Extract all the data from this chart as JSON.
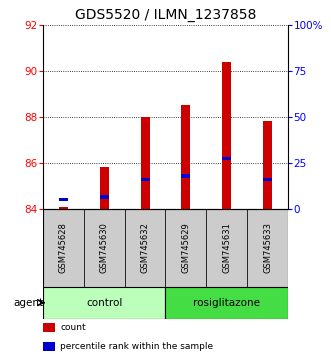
{
  "title": "GDS5520 / ILMN_1237858",
  "samples": [
    "GSM745628",
    "GSM745630",
    "GSM745632",
    "GSM745629",
    "GSM745631",
    "GSM745633"
  ],
  "red_values": [
    84.1,
    85.8,
    88.0,
    88.5,
    90.4,
    87.8
  ],
  "blue_values": [
    84.4,
    84.52,
    85.28,
    85.42,
    86.18,
    85.28
  ],
  "ymin": 84,
  "ymax": 92,
  "yticks_left": [
    84,
    86,
    88,
    90,
    92
  ],
  "yticks_right_vals": [
    84,
    86,
    88,
    90,
    92
  ],
  "yticks_right_labels": [
    "0",
    "25",
    "50",
    "75",
    "100%"
  ],
  "groups": [
    {
      "label": "control",
      "indices": [
        0,
        1,
        2
      ],
      "color": "#bbffbb"
    },
    {
      "label": "rosiglitazone",
      "indices": [
        3,
        4,
        5
      ],
      "color": "#44dd44"
    }
  ],
  "bar_color": "#cc0000",
  "blue_color": "#0000cc",
  "bar_width": 0.22,
  "grid_color": "#000000",
  "title_fontsize": 10,
  "tick_fontsize": 7.5,
  "sample_fontsize": 6,
  "label_fontsize": 7.5,
  "legend_fontsize": 6.5,
  "xlabel_area_color": "#cccccc",
  "agent_label": "agent",
  "legend_items": [
    {
      "label": "count",
      "color": "#cc0000"
    },
    {
      "label": "percentile rank within the sample",
      "color": "#0000cc"
    }
  ]
}
